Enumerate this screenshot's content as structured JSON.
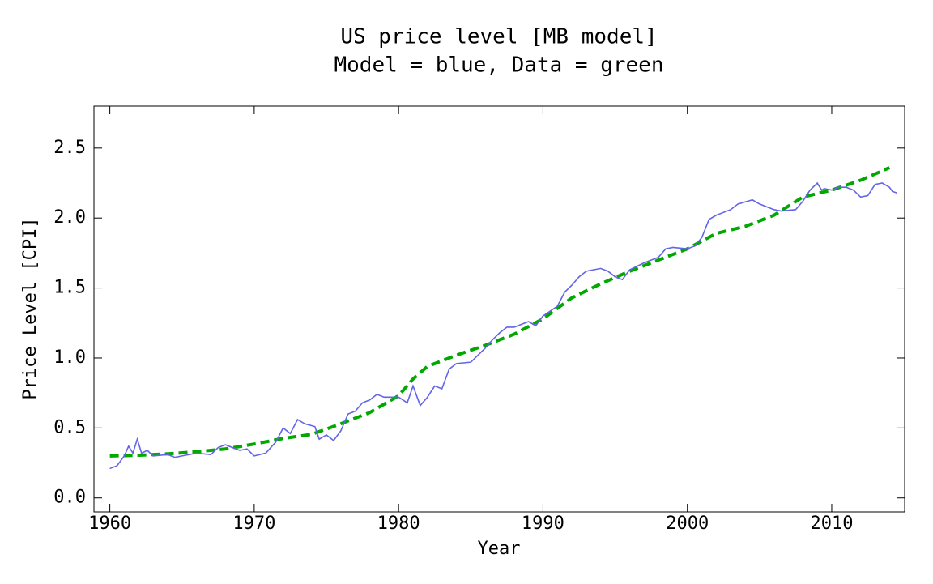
{
  "chart_data": {
    "type": "line",
    "title": "US price level [MB model]",
    "subtitle": "Model = blue, Data = green",
    "x_label": "Year",
    "y_label": "Price Level [CPI]",
    "xlim": [
      1958.9,
      2015.05
    ],
    "ylim": [
      -0.1,
      2.8
    ],
    "xticks": [
      1960,
      1970,
      1980,
      1990,
      2000,
      2010
    ],
    "yticks": [
      {
        "value": 0,
        "label": "0.0"
      },
      0.5,
      {
        "value": 1,
        "label": "1.0"
      },
      1.5,
      {
        "value": 2,
        "label": "2.0"
      },
      2.5
    ],
    "series": [
      {
        "name": "Model",
        "color": "#6464e6",
        "dash": false,
        "x": [
          1960,
          1960.5,
          1961,
          1961.3,
          1961.6,
          1961.9,
          1962.2,
          1962.6,
          1963,
          1964,
          1964.5,
          1965,
          1966,
          1967,
          1967.5,
          1968,
          1969,
          1969.5,
          1970,
          1970.8,
          1971.5,
          1972,
          1972.5,
          1973,
          1973.5,
          1974.2,
          1974.5,
          1975,
          1975.5,
          1976,
          1976.5,
          1977,
          1977.5,
          1978,
          1978.5,
          1979,
          1980,
          1980.6,
          1981,
          1981.5,
          1982,
          1982.5,
          1983,
          1983.5,
          1984,
          1985,
          1986,
          1986.5,
          1987,
          1987.5,
          1988,
          1988.5,
          1989,
          1989.5,
          1990,
          1991,
          1991.5,
          1992,
          1992.5,
          1993,
          1994,
          1994.5,
          1995,
          1995.5,
          1996,
          1997,
          1998,
          1998.5,
          1999,
          2000,
          2000.5,
          2001,
          2001.5,
          2002,
          2003,
          2003.5,
          2004.5,
          2005,
          2006,
          2006.5,
          2007.5,
          2008,
          2008.5,
          2009,
          2009.3,
          2009.5,
          2010,
          2010.5,
          2011,
          2011.5,
          2012,
          2012.5,
          2013,
          2013.5,
          2014,
          2014.2,
          2014.5
        ],
        "values": [
          0.21,
          0.23,
          0.3,
          0.37,
          0.32,
          0.42,
          0.32,
          0.34,
          0.3,
          0.31,
          0.29,
          0.3,
          0.32,
          0.31,
          0.36,
          0.38,
          0.34,
          0.35,
          0.3,
          0.32,
          0.4,
          0.5,
          0.46,
          0.56,
          0.53,
          0.51,
          0.42,
          0.45,
          0.41,
          0.48,
          0.6,
          0.62,
          0.68,
          0.7,
          0.74,
          0.72,
          0.72,
          0.68,
          0.8,
          0.66,
          0.72,
          0.8,
          0.78,
          0.92,
          0.96,
          0.97,
          1.07,
          1.13,
          1.18,
          1.22,
          1.22,
          1.24,
          1.26,
          1.23,
          1.3,
          1.37,
          1.47,
          1.52,
          1.58,
          1.62,
          1.64,
          1.62,
          1.58,
          1.56,
          1.63,
          1.68,
          1.72,
          1.78,
          1.79,
          1.78,
          1.8,
          1.86,
          1.99,
          2.02,
          2.06,
          2.1,
          2.13,
          2.1,
          2.06,
          2.05,
          2.06,
          2.12,
          2.2,
          2.25,
          2.2,
          2.21,
          2.2,
          2.22,
          2.22,
          2.2,
          2.15,
          2.16,
          2.24,
          2.25,
          2.22,
          2.19,
          2.18
        ]
      },
      {
        "name": "Data",
        "color": "#00a800",
        "dash": true,
        "x": [
          1960,
          1962,
          1964,
          1966,
          1968,
          1970,
          1972,
          1974,
          1976,
          1978,
          1980,
          1981,
          1982,
          1984,
          1986,
          1988,
          1990,
          1992,
          1994,
          1996,
          1998,
          2000,
          2002,
          2004,
          2006,
          2008,
          2010,
          2012,
          2014
        ],
        "values": [
          0.3,
          0.305,
          0.315,
          0.33,
          0.35,
          0.385,
          0.425,
          0.455,
          0.53,
          0.61,
          0.73,
          0.85,
          0.94,
          1.02,
          1.09,
          1.17,
          1.28,
          1.43,
          1.53,
          1.62,
          1.7,
          1.78,
          1.89,
          1.94,
          2.02,
          2.15,
          2.2,
          2.27,
          2.36
        ]
      }
    ]
  }
}
